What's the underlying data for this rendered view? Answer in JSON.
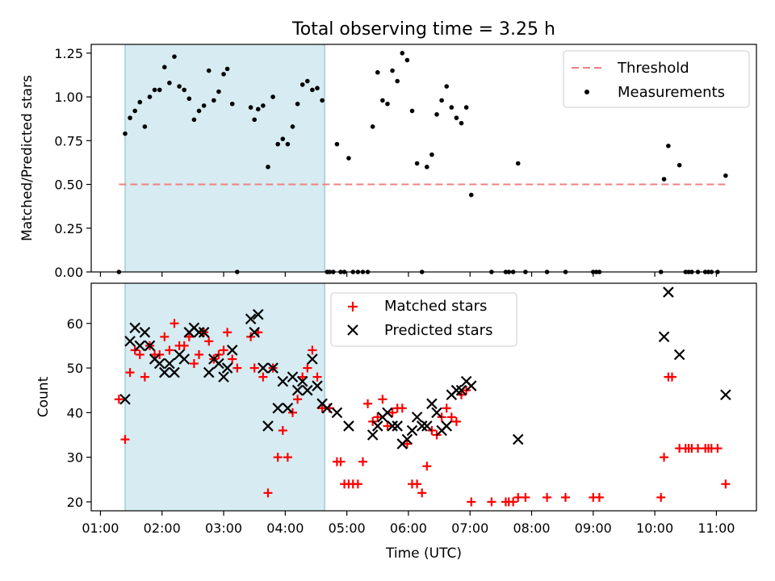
{
  "chart_data": [
    {
      "type": "scatter",
      "title": "Total observing time = 3.25 h",
      "xlabel": "",
      "ylabel": "Matched/Predicted stars",
      "ylim": [
        0,
        1.3
      ],
      "xlim": [
        0.85,
        11.65
      ],
      "x_unit": "hours UTC",
      "shaded_span": [
        1.4,
        4.64
      ],
      "yticks": [
        0,
        0.25,
        0.5,
        0.75,
        1.0,
        1.25
      ],
      "ytick_labels": [
        "0.00",
        "0.25",
        "0.50",
        "0.75",
        "1.00",
        "1.25"
      ],
      "legend_position": "upper right",
      "series": [
        {
          "name": "Threshold",
          "kind": "dashed-line",
          "color": "#f08080",
          "x": [
            1.3,
            11.15
          ],
          "y": [
            0.5,
            0.5
          ]
        },
        {
          "name": "Measurements",
          "kind": "scatter-dot",
          "color": "#000000",
          "x": [
            1.3,
            1.4,
            1.48,
            1.56,
            1.64,
            1.72,
            1.8,
            1.88,
            1.96,
            2.04,
            2.12,
            2.2,
            2.28,
            2.36,
            2.44,
            2.52,
            2.6,
            2.68,
            2.76,
            2.84,
            2.92,
            3.0,
            3.06,
            3.14,
            3.22,
            3.44,
            3.5,
            3.56,
            3.64,
            3.72,
            3.8,
            3.88,
            3.96,
            4.04,
            4.12,
            4.2,
            4.28,
            4.36,
            4.44,
            4.52,
            4.6,
            4.68,
            4.72,
            4.78,
            4.84,
            4.9,
            4.96,
            5.03,
            5.1,
            5.18,
            5.26,
            5.34,
            5.42,
            5.5,
            5.58,
            5.66,
            5.74,
            5.82,
            5.9,
            5.98,
            6.06,
            6.14,
            6.22,
            6.3,
            6.38,
            6.46,
            6.54,
            6.62,
            6.7,
            6.78,
            6.86,
            6.94,
            7.02,
            7.35,
            7.58,
            7.63,
            7.7,
            7.78,
            7.9,
            8.25,
            8.55,
            9.0,
            9.05,
            9.1,
            10.1,
            10.15,
            10.22,
            10.4,
            10.5,
            10.55,
            10.6,
            10.7,
            10.82,
            10.87,
            10.92,
            11.02,
            11.15
          ],
          "y": [
            0.0,
            0.79,
            0.88,
            0.92,
            0.97,
            0.83,
            1.0,
            1.04,
            1.04,
            1.17,
            1.08,
            1.23,
            1.06,
            1.04,
            0.99,
            0.87,
            0.92,
            0.95,
            1.15,
            0.98,
            1.03,
            1.13,
            1.16,
            0.96,
            0.0,
            0.94,
            0.87,
            0.93,
            0.95,
            0.6,
            1.0,
            0.73,
            0.76,
            0.73,
            0.83,
            0.96,
            1.07,
            1.09,
            1.04,
            1.05,
            0.98,
            0.0,
            0.0,
            0.0,
            0.73,
            0.0,
            0.0,
            0.65,
            0.0,
            0.0,
            0.0,
            0.0,
            0.83,
            1.14,
            0.98,
            0.96,
            1.15,
            1.09,
            1.25,
            1.21,
            0.92,
            0.62,
            0.0,
            0.6,
            0.67,
            0.9,
            0.98,
            1.06,
            0.94,
            0.88,
            0.85,
            0.94,
            0.44,
            0.0,
            0.0,
            0.0,
            0.0,
            0.62,
            0.0,
            0.0,
            0.0,
            0.0,
            0.0,
            0.0,
            0.0,
            0.53,
            0.72,
            0.61,
            0.0,
            0.0,
            0.0,
            0.0,
            0.0,
            0.0,
            0.0,
            0.0,
            0.55
          ]
        }
      ]
    },
    {
      "type": "scatter",
      "title": "",
      "xlabel": "Time (UTC)",
      "ylabel": "Count",
      "ylim": [
        18,
        69
      ],
      "xlim": [
        0.85,
        11.65
      ],
      "x_unit": "hours UTC",
      "shaded_span": [
        1.4,
        4.64
      ],
      "yticks": [
        20,
        30,
        40,
        50,
        60
      ],
      "ytick_labels": [
        "20",
        "30",
        "40",
        "50",
        "60"
      ],
      "xticks": [
        1,
        2,
        3,
        4,
        5,
        6,
        7,
        8,
        9,
        10,
        11
      ],
      "xtick_labels": [
        "01:00",
        "02:00",
        "03:00",
        "04:00",
        "05:00",
        "06:00",
        "07:00",
        "08:00",
        "09:00",
        "10:00",
        "11:00"
      ],
      "legend_position": "upper center",
      "series": [
        {
          "name": "Matched stars",
          "kind": "plus",
          "color": "#ff0000",
          "x": [
            1.3,
            1.4,
            1.48,
            1.56,
            1.64,
            1.72,
            1.8,
            1.88,
            1.96,
            2.04,
            2.12,
            2.2,
            2.28,
            2.36,
            2.44,
            2.52,
            2.6,
            2.68,
            2.76,
            2.84,
            2.92,
            3.0,
            3.06,
            3.14,
            3.22,
            3.44,
            3.5,
            3.56,
            3.64,
            3.72,
            3.8,
            3.88,
            3.96,
            4.04,
            4.12,
            4.2,
            4.28,
            4.36,
            4.44,
            4.52,
            4.6,
            4.72,
            4.84,
            4.9,
            4.96,
            5.03,
            5.1,
            5.18,
            5.26,
            5.34,
            5.42,
            5.5,
            5.58,
            5.66,
            5.74,
            5.82,
            5.9,
            5.98,
            6.06,
            6.14,
            6.22,
            6.3,
            6.38,
            6.46,
            6.54,
            6.62,
            6.7,
            6.78,
            6.86,
            6.94,
            7.02,
            7.35,
            7.58,
            7.63,
            7.7,
            7.78,
            7.9,
            8.25,
            8.55,
            9.0,
            9.1,
            10.1,
            10.15,
            10.22,
            10.28,
            10.4,
            10.5,
            10.55,
            10.6,
            10.7,
            10.82,
            10.87,
            10.92,
            11.02,
            11.15
          ],
          "y": [
            43,
            34,
            49,
            54,
            53,
            48,
            55,
            53,
            53,
            57,
            54,
            60,
            55,
            55,
            57,
            51,
            53,
            58,
            56,
            52,
            53,
            54,
            58,
            52,
            50,
            57,
            50,
            58,
            48,
            22,
            50,
            30,
            36,
            30,
            40,
            43,
            48,
            50,
            54,
            48,
            41,
            41,
            29,
            29,
            24,
            24,
            24,
            24,
            29,
            42,
            38,
            39,
            43,
            37,
            40,
            41,
            41,
            33,
            24,
            24,
            22,
            28,
            36,
            35,
            39,
            41,
            39,
            38,
            44,
            45,
            20,
            20,
            20,
            20,
            20,
            21,
            21,
            21,
            21,
            21,
            21,
            21,
            30,
            48,
            48,
            32,
            32,
            32,
            32,
            32,
            32,
            32,
            32,
            32,
            24
          ]
        },
        {
          "name": "Predicted stars",
          "kind": "x",
          "color": "#000000",
          "x": [
            1.4,
            1.48,
            1.56,
            1.64,
            1.72,
            1.8,
            1.88,
            1.96,
            2.04,
            2.12,
            2.2,
            2.28,
            2.36,
            2.44,
            2.52,
            2.6,
            2.68,
            2.76,
            2.84,
            2.92,
            3.0,
            3.06,
            3.14,
            3.44,
            3.5,
            3.56,
            3.64,
            3.72,
            3.8,
            3.88,
            3.96,
            4.04,
            4.12,
            4.2,
            4.28,
            4.36,
            4.44,
            4.52,
            4.6,
            4.68,
            4.84,
            5.03,
            5.42,
            5.5,
            5.58,
            5.66,
            5.74,
            5.82,
            5.9,
            5.98,
            6.06,
            6.14,
            6.22,
            6.3,
            6.38,
            6.46,
            6.54,
            6.62,
            6.7,
            6.78,
            6.86,
            6.94,
            7.02,
            7.78,
            10.15,
            10.22,
            10.4,
            11.15
          ],
          "y": [
            43,
            56,
            59,
            55,
            58,
            55,
            52,
            51,
            49,
            51,
            49,
            53,
            52,
            58,
            59,
            58,
            58,
            49,
            52,
            51,
            48,
            50,
            54,
            61,
            58,
            62,
            50,
            37,
            50,
            41,
            47,
            41,
            48,
            45,
            47,
            45,
            52,
            46,
            42,
            41,
            40,
            37,
            35,
            37,
            39,
            40,
            37,
            37,
            33,
            34,
            36,
            39,
            37,
            37,
            42,
            40,
            36,
            37,
            44,
            45,
            45,
            47,
            46,
            34,
            57,
            67,
            53,
            44
          ]
        }
      ]
    }
  ]
}
